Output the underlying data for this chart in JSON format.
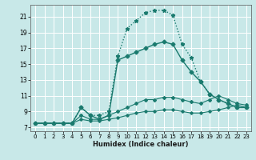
{
  "xlabel": "Humidex (Indice chaleur)",
  "bg_color": "#c8e8e8",
  "grid_color": "#ffffff",
  "line_color": "#1a7a6e",
  "xlim": [
    -0.5,
    23.5
  ],
  "ylim": [
    6.5,
    22.5
  ],
  "xticks": [
    0,
    1,
    2,
    3,
    4,
    5,
    6,
    7,
    8,
    9,
    10,
    11,
    12,
    13,
    14,
    15,
    16,
    17,
    18,
    19,
    20,
    21,
    22,
    23
  ],
  "yticks": [
    7,
    9,
    11,
    13,
    15,
    17,
    19,
    21
  ],
  "series": [
    {
      "x": [
        0,
        1,
        2,
        3,
        4,
        5,
        6,
        7,
        8,
        9,
        10,
        11,
        12,
        13,
        14,
        15,
        16,
        17,
        18,
        19,
        20,
        21,
        22,
        23
      ],
      "y": [
        7.5,
        7.5,
        7.5,
        7.5,
        7.5,
        9.5,
        8.5,
        8.5,
        9.0,
        16.0,
        19.5,
        20.5,
        21.5,
        21.8,
        21.8,
        21.2,
        17.5,
        15.8,
        12.8,
        11.2,
        10.5,
        10.0,
        9.5,
        9.5
      ],
      "linestyle": ":",
      "marker": "*",
      "markersize": 3.5,
      "linewidth": 1.0
    },
    {
      "x": [
        0,
        1,
        2,
        3,
        4,
        5,
        6,
        7,
        8,
        9,
        10,
        11,
        12,
        13,
        14,
        15,
        16,
        17,
        18,
        19,
        20,
        21,
        22,
        23
      ],
      "y": [
        7.5,
        7.5,
        7.5,
        7.5,
        7.5,
        9.5,
        8.5,
        8.0,
        8.5,
        15.5,
        16.0,
        16.5,
        17.0,
        17.5,
        17.8,
        17.5,
        15.5,
        14.0,
        12.8,
        11.2,
        10.5,
        10.0,
        9.5,
        9.5
      ],
      "linestyle": "-",
      "marker": "D",
      "markersize": 2.5,
      "linewidth": 1.0
    },
    {
      "x": [
        0,
        1,
        2,
        3,
        4,
        5,
        6,
        7,
        8,
        9,
        10,
        11,
        12,
        13,
        14,
        15,
        16,
        17,
        18,
        19,
        20,
        21,
        22,
        23
      ],
      "y": [
        7.5,
        7.5,
        7.5,
        7.5,
        7.5,
        8.5,
        8.0,
        8.0,
        8.5,
        9.0,
        9.5,
        10.0,
        10.5,
        10.5,
        10.8,
        10.8,
        10.5,
        10.2,
        10.0,
        10.5,
        11.0,
        10.5,
        10.0,
        9.8
      ],
      "linestyle": "-",
      "marker": "D",
      "markersize": 2.0,
      "linewidth": 0.8
    },
    {
      "x": [
        0,
        1,
        2,
        3,
        4,
        5,
        6,
        7,
        8,
        9,
        10,
        11,
        12,
        13,
        14,
        15,
        16,
        17,
        18,
        19,
        20,
        21,
        22,
        23
      ],
      "y": [
        7.5,
        7.5,
        7.5,
        7.5,
        7.5,
        8.0,
        7.8,
        7.8,
        8.0,
        8.2,
        8.5,
        8.8,
        9.0,
        9.0,
        9.2,
        9.2,
        9.0,
        8.8,
        8.8,
        9.0,
        9.2,
        9.5,
        9.8,
        9.5
      ],
      "linestyle": "-",
      "marker": "D",
      "markersize": 1.8,
      "linewidth": 0.8
    }
  ]
}
